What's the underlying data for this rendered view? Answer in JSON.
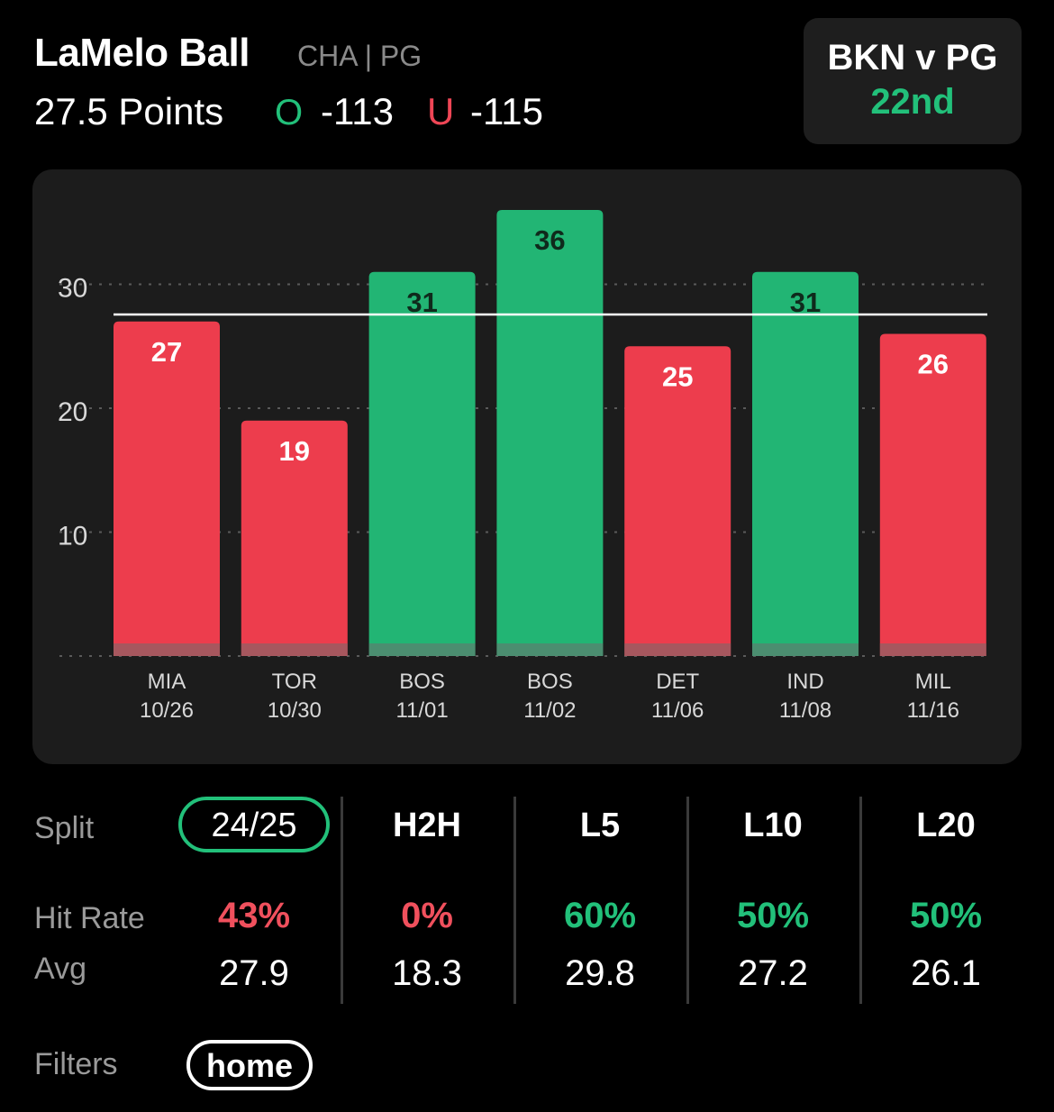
{
  "header": {
    "player_name": "LaMelo Ball",
    "team_position": "CHA | PG",
    "prop_line": "27.5 Points",
    "over_symbol": "O",
    "over_odds": "-113",
    "under_symbol": "U",
    "under_odds": "-115"
  },
  "matchup": {
    "title": "BKN v PG",
    "rank": "22nd"
  },
  "colors": {
    "over": "#22b574",
    "under": "#ed3d4d",
    "panel": "#1c1c1c"
  },
  "chart_data": {
    "type": "bar",
    "categories": [
      "MIA 10/26",
      "TOR 10/30",
      "BOS 11/01",
      "BOS 11/02",
      "DET 11/06",
      "IND 11/08",
      "MIL 11/16"
    ],
    "teams": [
      "MIA",
      "TOR",
      "BOS",
      "BOS",
      "DET",
      "IND",
      "MIL"
    ],
    "dates": [
      "10/26",
      "10/30",
      "11/01",
      "11/02",
      "11/06",
      "11/08",
      "11/16"
    ],
    "values": [
      27,
      19,
      31,
      36,
      25,
      31,
      26
    ],
    "line": 27.5,
    "yticks": [
      10,
      20,
      30
    ],
    "ylim": [
      0,
      36
    ],
    "grid": true
  },
  "splits": {
    "row_labels": {
      "split": "Split",
      "hit_rate": "Hit Rate",
      "avg": "Avg"
    },
    "columns": [
      {
        "label": "24/25",
        "hit_rate": "43%",
        "avg": "27.9",
        "status": "under"
      },
      {
        "label": "H2H",
        "hit_rate": "0%",
        "avg": "18.3",
        "status": "under"
      },
      {
        "label": "L5",
        "hit_rate": "60%",
        "avg": "29.8",
        "status": "over"
      },
      {
        "label": "L10",
        "hit_rate": "50%",
        "avg": "27.2",
        "status": "over"
      },
      {
        "label": "L20",
        "hit_rate": "50%",
        "avg": "26.1",
        "status": "over"
      }
    ]
  },
  "filters": {
    "label": "Filters",
    "active": "home"
  }
}
